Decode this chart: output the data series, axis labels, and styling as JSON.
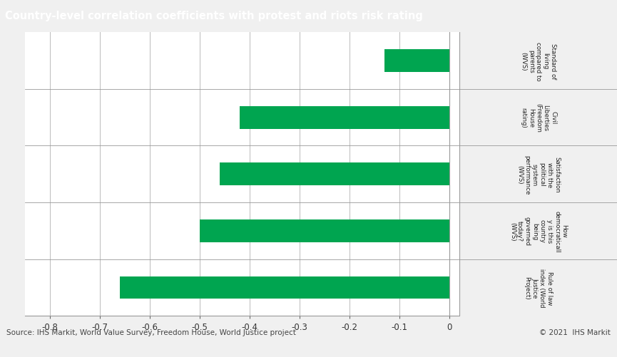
{
  "title": "Country-level correlation coefficients with protest and riots risk rating",
  "categories": [
    "Standard of\nliving\ncompared to\nparents\n(WVS)",
    "Civil\nLiberties\n(Freedom\nHouse\nrating)",
    "Satisfaction\nwith the\npolitical\nsystem\nperformance\n(WVS)",
    "How\ndemocraticall\ny is this\ncountry\nbeing\ngoverned\ntoday?\n(WVS)",
    "Rule of law\nindex (World\nJustice\nProject)"
  ],
  "values": [
    -0.13,
    -0.42,
    -0.46,
    -0.5,
    -0.66
  ],
  "bar_color": "#00A550",
  "xlim": [
    -0.85,
    0.02
  ],
  "xticks": [
    -0.8,
    -0.7,
    -0.6,
    -0.5,
    -0.4,
    -0.3,
    -0.2,
    -0.1,
    0.0
  ],
  "title_bg_color": "#7F7F7F",
  "title_font_color": "#FFFFFF",
  "title_fontsize": 10.5,
  "tick_fontsize": 8.5,
  "label_fontsize": 6.2,
  "footer_text": "Source: IHS Markit, World Value Survey, Freedom House, World Justice project",
  "footer_right": "© 2021  IHS Markit",
  "plot_bg_color": "#FFFFFF",
  "fig_bg_color": "#F0F0F0",
  "grid_color": "#BBBBBB",
  "separator_color": "#999999",
  "bar_height": 0.4,
  "n_bars": 5
}
